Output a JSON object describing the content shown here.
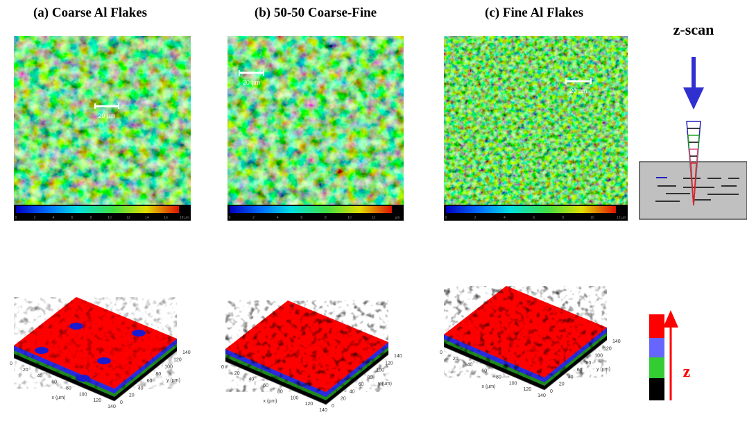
{
  "panels": [
    {
      "title": "(a) Coarse Al Flakes",
      "scale_bar": "20 µm",
      "colorbar_ticks": [
        "0",
        "2",
        "4",
        "6",
        "8",
        "10",
        "12",
        "14",
        "16",
        "18 µm"
      ],
      "x_axis": "x (µm)",
      "y_axis": "y (µm)",
      "x_ticks": [
        "0",
        "20",
        "40",
        "60",
        "80",
        "100",
        "120",
        "140"
      ],
      "y_ticks": [
        "0",
        "20",
        "40",
        "60",
        "80",
        "100",
        "120",
        "140"
      ]
    },
    {
      "title": "(b) 50-50 Coarse-Fine",
      "scale_bar": "20 µm",
      "colorbar_ticks": [
        "0",
        "2",
        "4",
        "6",
        "8",
        "10",
        "12",
        "µm"
      ],
      "x_axis": "x (µm)",
      "y_axis": "y (µm)",
      "x_ticks": [
        "0",
        "20",
        "40",
        "60",
        "80",
        "100",
        "120",
        "140"
      ],
      "y_ticks": [
        "0",
        "20",
        "40",
        "60",
        "80",
        "100",
        "120",
        "140"
      ]
    },
    {
      "title": "(c) Fine Al Flakes",
      "scale_bar": "20 µm",
      "colorbar_ticks": [
        "0",
        "2",
        "4",
        "6",
        "8",
        "10",
        "12 µm"
      ],
      "x_axis": "x (µm)",
      "y_axis": "y (µm)",
      "x_ticks": [
        "0",
        "20",
        "40",
        "60",
        "80",
        "100",
        "120",
        "140"
      ],
      "y_ticks": [
        "0",
        "20",
        "40",
        "60",
        "80",
        "100",
        "120",
        "140"
      ]
    }
  ],
  "schematic": {
    "title": "z-scan",
    "axis_label": "z"
  }
}
